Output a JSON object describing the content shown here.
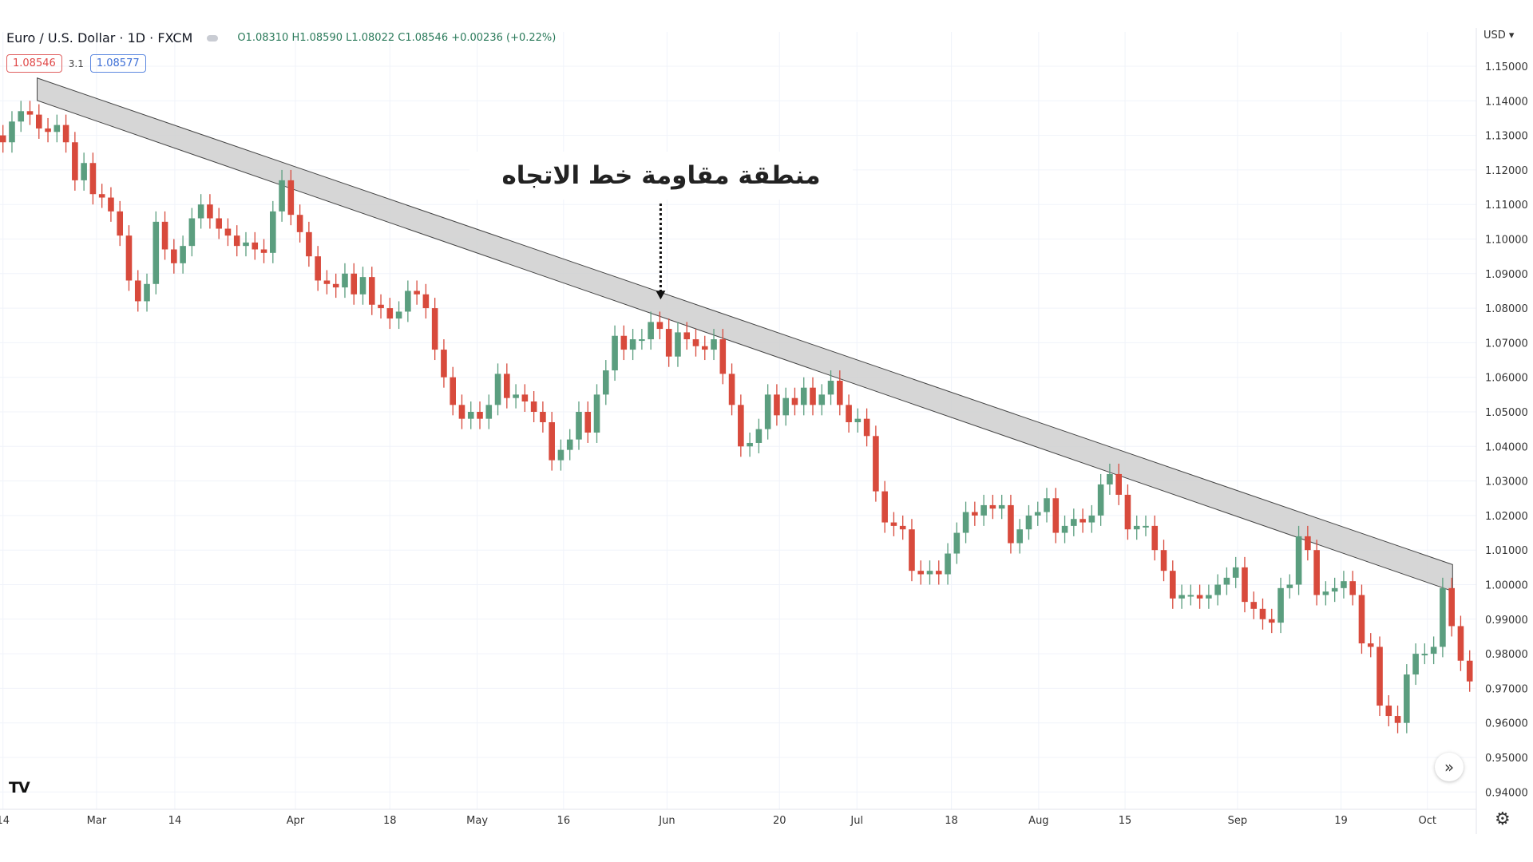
{
  "header": {
    "symbol": "Euro / U.S. Dollar · 1D · FXCM",
    "ohlc": "O1.08310 H1.08590 L1.08022 C1.08546 +0.00236 (+0.22%)",
    "bid": "1.08546",
    "spread": "3.1",
    "ask": "1.08577"
  },
  "currency_label": "USD ▾",
  "annotation_text": "منطقة مقاومة خط الاتجاه",
  "logo_text": "TV",
  "scroll_button": "»",
  "settings_icon": "⚙",
  "colors": {
    "up": "#5b9e7f",
    "down": "#d84a3c",
    "band": "#cfcfcf"
  },
  "chart_data": {
    "type": "candlestick",
    "title": "Euro / U.S. Dollar · 1D · FXCM",
    "ylim": [
      0.935,
      1.155
    ],
    "y_ticks": [
      "1.15000",
      "1.14000",
      "1.13000",
      "1.12000",
      "1.11000",
      "1.10000",
      "1.09000",
      "1.08000",
      "1.07000",
      "1.06000",
      "1.05000",
      "1.04000",
      "1.03000",
      "1.02000",
      "1.01000",
      "1.00000",
      "0.99000",
      "0.98000",
      "0.97000",
      "0.96000",
      "0.95000",
      "0.94000"
    ],
    "x_ticks": [
      {
        "label": "14",
        "index": 0
      },
      {
        "label": "Mar",
        "index": 10.4
      },
      {
        "label": "14",
        "index": 19.1
      },
      {
        "label": "Apr",
        "index": 32.5
      },
      {
        "label": "18",
        "index": 43
      },
      {
        "label": "May",
        "index": 52.7
      },
      {
        "label": "16",
        "index": 62.3
      },
      {
        "label": "Jun",
        "index": 73.8
      },
      {
        "label": "20",
        "index": 86.3
      },
      {
        "label": "Jul",
        "index": 94.9
      },
      {
        "label": "18",
        "index": 105.4
      },
      {
        "label": "Aug",
        "index": 115.1
      },
      {
        "label": "15",
        "index": 124.7
      },
      {
        "label": "Sep",
        "index": 137.2
      },
      {
        "label": "19",
        "index": 148.7
      },
      {
        "label": "Oct",
        "index": 158.3
      }
    ],
    "first_open": 1.13,
    "closes": [
      1.128,
      1.134,
      1.137,
      1.136,
      1.132,
      1.131,
      1.133,
      1.128,
      1.117,
      1.122,
      1.113,
      1.112,
      1.108,
      1.101,
      1.088,
      1.082,
      1.087,
      1.105,
      1.097,
      1.093,
      1.098,
      1.106,
      1.11,
      1.106,
      1.103,
      1.101,
      1.098,
      1.099,
      1.097,
      1.096,
      1.108,
      1.117,
      1.107,
      1.102,
      1.095,
      1.088,
      1.087,
      1.086,
      1.09,
      1.084,
      1.089,
      1.081,
      1.08,
      1.077,
      1.079,
      1.085,
      1.084,
      1.08,
      1.068,
      1.06,
      1.052,
      1.048,
      1.05,
      1.048,
      1.052,
      1.061,
      1.054,
      1.055,
      1.053,
      1.05,
      1.047,
      1.036,
      1.039,
      1.042,
      1.05,
      1.044,
      1.055,
      1.062,
      1.072,
      1.068,
      1.071,
      1.071,
      1.076,
      1.074,
      1.066,
      1.073,
      1.071,
      1.069,
      1.068,
      1.071,
      1.061,
      1.052,
      1.04,
      1.041,
      1.045,
      1.055,
      1.049,
      1.054,
      1.052,
      1.057,
      1.052,
      1.055,
      1.059,
      1.052,
      1.047,
      1.048,
      1.043,
      1.027,
      1.018,
      1.017,
      1.016,
      1.004,
      1.003,
      1.004,
      1.003,
      1.009,
      1.015,
      1.021,
      1.02,
      1.023,
      1.022,
      1.023,
      1.012,
      1.016,
      1.02,
      1.021,
      1.025,
      1.015,
      1.017,
      1.019,
      1.018,
      1.02,
      1.029,
      1.032,
      1.026,
      1.016,
      1.017,
      1.017,
      1.01,
      1.004,
      0.996,
      0.997,
      0.997,
      0.996,
      0.997,
      1.0,
      1.002,
      1.005,
      0.995,
      0.993,
      0.99,
      0.989,
      0.999,
      1.0,
      1.014,
      1.01,
      0.997,
      0.998,
      0.999,
      1.001,
      0.997,
      0.983,
      0.982,
      0.965,
      0.962,
      0.96,
      0.974,
      0.98,
      0.98,
      0.982,
      0.999,
      0.988,
      0.978,
      0.972
    ],
    "resistance_band": {
      "start_index": 3.8,
      "end_index": 161.1,
      "upper": [
        1.1466,
        1.0058
      ],
      "lower": [
        1.1401,
        0.9981
      ]
    },
    "arrow_target": {
      "index": 73,
      "price": 1.0825
    }
  }
}
